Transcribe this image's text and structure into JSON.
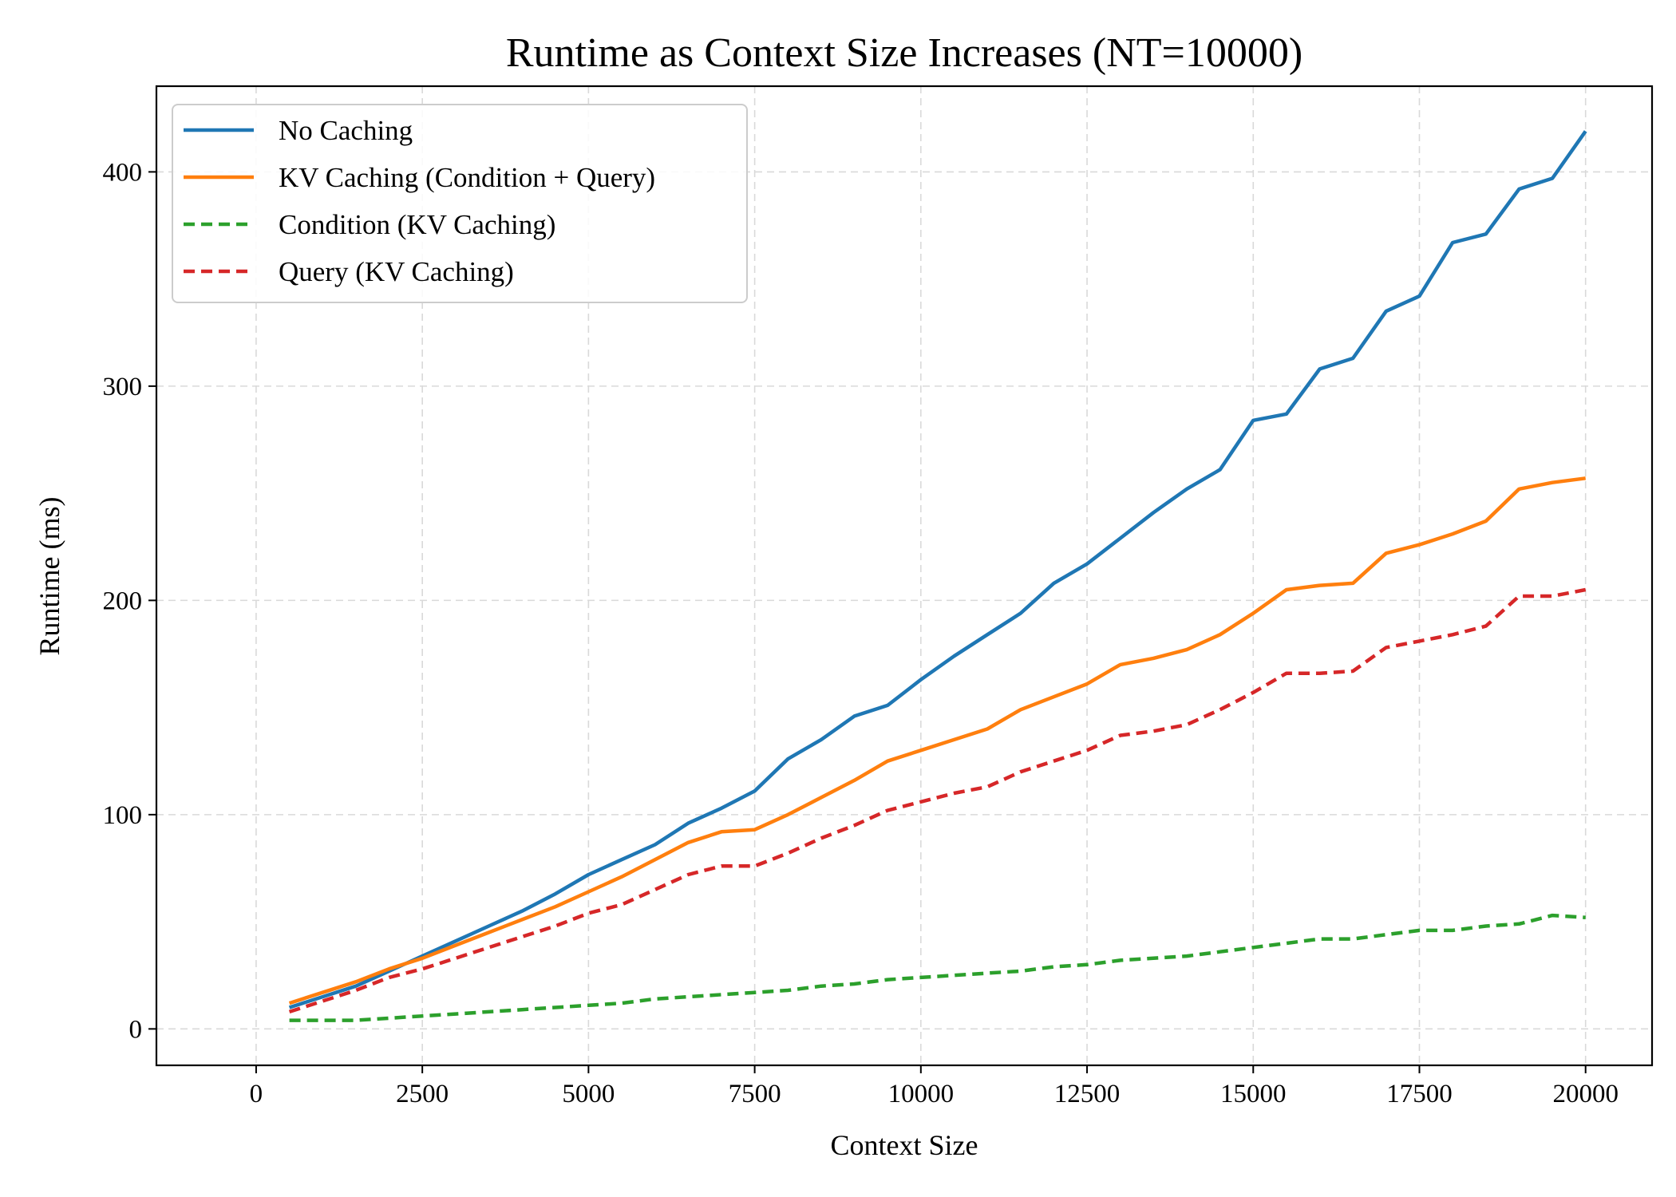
{
  "chart_data": {
    "type": "line",
    "title": "Runtime as Context Size Increases (NT=10000)",
    "xlabel": "Context Size",
    "ylabel": "Runtime (ms)",
    "xlim": [
      -1500,
      21000
    ],
    "ylim": [
      -17,
      440
    ],
    "xticks": [
      0,
      2500,
      5000,
      7500,
      10000,
      12500,
      15000,
      17500,
      20000
    ],
    "xtick_labels": [
      "0",
      "2500",
      "5000",
      "7500",
      "10000",
      "12500",
      "15000",
      "17500",
      "20000"
    ],
    "yticks": [
      0,
      100,
      200,
      300,
      400
    ],
    "ytick_labels": [
      "0",
      "100",
      "200",
      "300",
      "400"
    ],
    "grid": true,
    "legend_position": "top-left",
    "x": [
      500,
      1000,
      1500,
      2000,
      2500,
      3000,
      3500,
      4000,
      4500,
      5000,
      5500,
      6000,
      6500,
      7000,
      7500,
      8000,
      8500,
      9000,
      9500,
      10000,
      10500,
      11000,
      11500,
      12000,
      12500,
      13000,
      13500,
      14000,
      14500,
      15000,
      15500,
      16000,
      16500,
      17000,
      17500,
      18000,
      18500,
      19000,
      19500,
      20000
    ],
    "series": [
      {
        "name": "No Caching",
        "color": "#1f77b4",
        "dash": "solid",
        "values": [
          10,
          15,
          20,
          27,
          34,
          41,
          48,
          55,
          63,
          72,
          79,
          86,
          96,
          103,
          111,
          126,
          135,
          146,
          151,
          163,
          174,
          184,
          194,
          208,
          217,
          229,
          241,
          252,
          261,
          284,
          287,
          308,
          313,
          335,
          342,
          367,
          371,
          392,
          397,
          419
        ]
      },
      {
        "name": "KV Caching (Condition + Query)",
        "color": "#ff7f0e",
        "dash": "solid",
        "values": [
          12,
          17,
          22,
          28,
          33,
          39,
          45,
          51,
          57,
          64,
          71,
          79,
          87,
          92,
          93,
          100,
          108,
          116,
          125,
          130,
          135,
          140,
          149,
          155,
          161,
          170,
          173,
          177,
          184,
          194,
          205,
          207,
          208,
          222,
          226,
          231,
          237,
          252,
          255,
          257
        ]
      },
      {
        "name": "Condition (KV Caching)",
        "color": "#2ca02c",
        "dash": "dashed",
        "values": [
          4,
          4,
          4,
          5,
          6,
          7,
          8,
          9,
          10,
          11,
          12,
          14,
          15,
          16,
          17,
          18,
          20,
          21,
          23,
          24,
          25,
          26,
          27,
          29,
          30,
          32,
          33,
          34,
          36,
          38,
          40,
          42,
          42,
          44,
          46,
          46,
          48,
          49,
          53,
          52
        ]
      },
      {
        "name": "Query (KV Caching)",
        "color": "#d62728",
        "dash": "dashed",
        "values": [
          8,
          13,
          18,
          24,
          28,
          33,
          38,
          43,
          48,
          54,
          58,
          65,
          72,
          76,
          76,
          82,
          89,
          95,
          102,
          106,
          110,
          113,
          120,
          125,
          130,
          137,
          139,
          142,
          149,
          157,
          166,
          166,
          167,
          178,
          181,
          184,
          188,
          202,
          202,
          205
        ]
      }
    ]
  }
}
